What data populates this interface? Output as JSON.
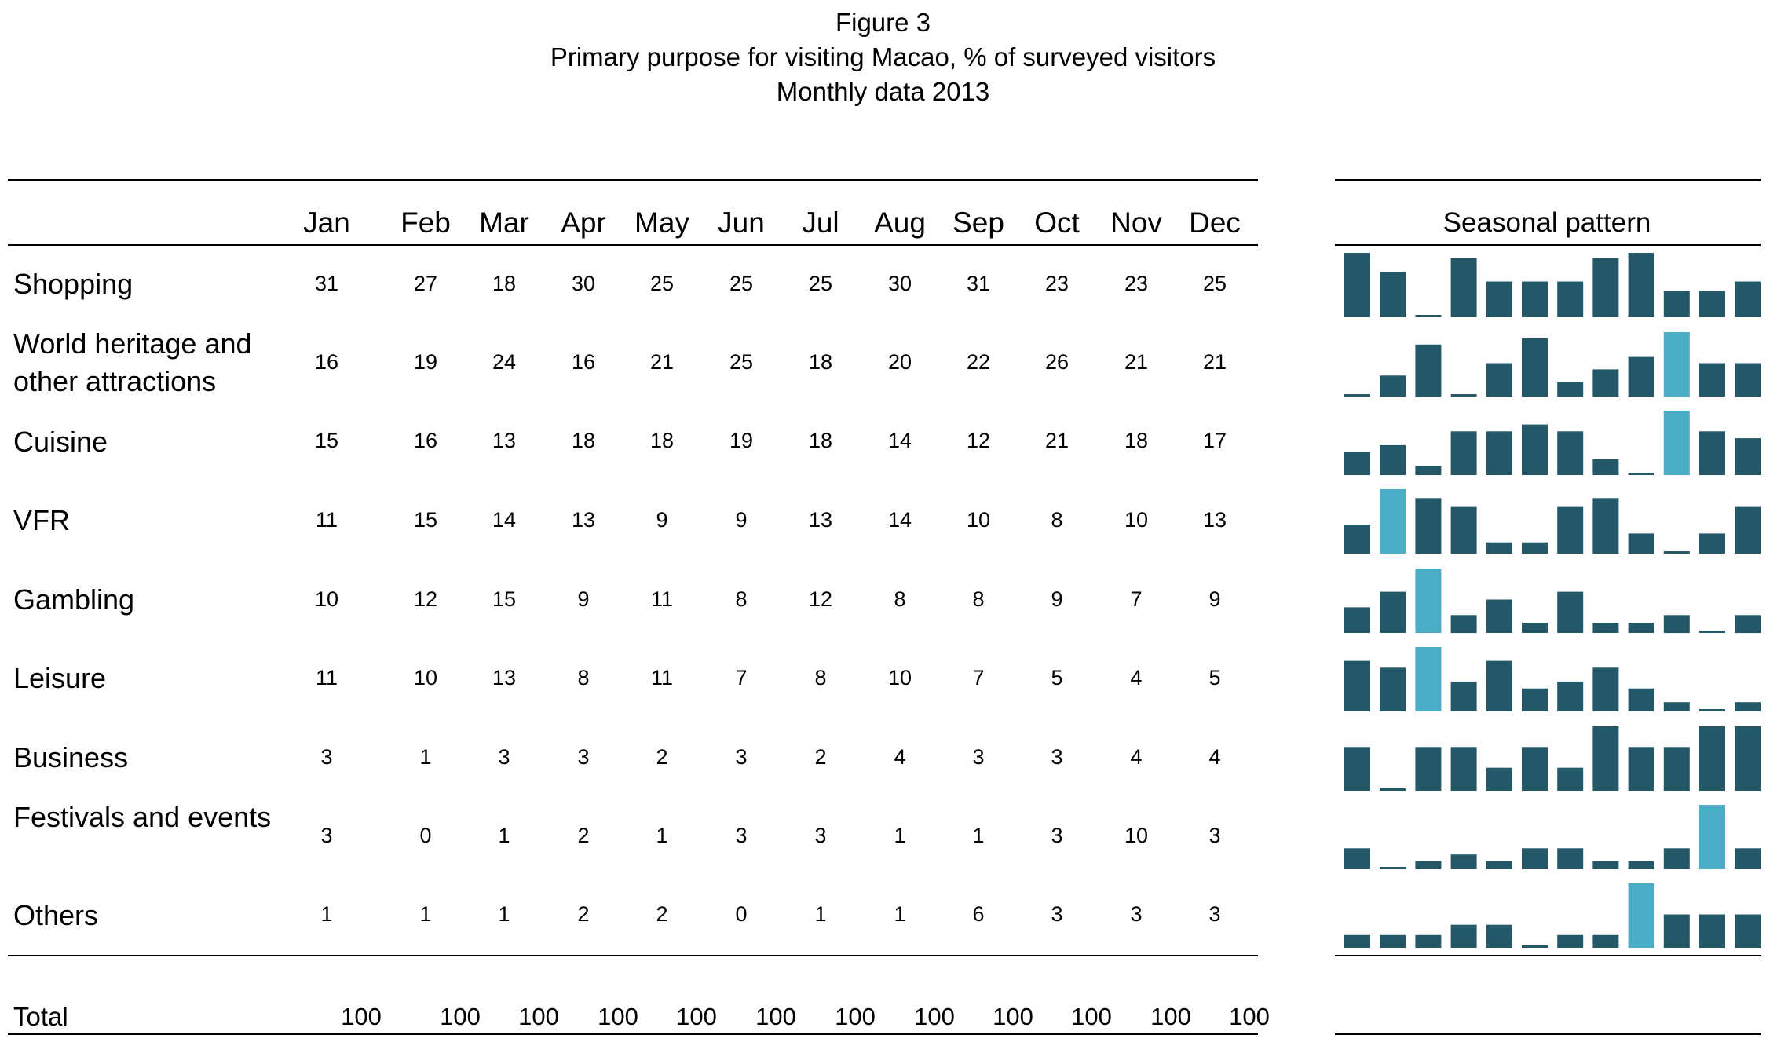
{
  "title": {
    "line1": "Figure 3",
    "line2": "Primary purpose for visiting Macao, % of surveyed visitors",
    "line3": "Monthly data 2013"
  },
  "seasonal_header": "Seasonal pattern",
  "colors": {
    "bar": "#245868",
    "highlight": "#4bacc6",
    "rule": "#000000"
  },
  "chart_data": {
    "type": "table",
    "columns": [
      "Jan",
      "Feb",
      "Mar",
      "Apr",
      "May",
      "Jun",
      "Jul",
      "Aug",
      "Sep",
      "Oct",
      "Nov",
      "Dec"
    ],
    "rows": [
      {
        "label": "Shopping",
        "values": [
          31,
          27,
          18,
          30,
          25,
          25,
          25,
          30,
          31,
          23,
          23,
          25
        ]
      },
      {
        "label": "World heritage and other attractions",
        "values": [
          16,
          19,
          24,
          16,
          21,
          25,
          18,
          20,
          22,
          26,
          21,
          21
        ]
      },
      {
        "label": "Cuisine",
        "values": [
          15,
          16,
          13,
          18,
          18,
          19,
          18,
          14,
          12,
          21,
          18,
          17
        ]
      },
      {
        "label": "VFR",
        "values": [
          11,
          15,
          14,
          13,
          9,
          9,
          13,
          14,
          10,
          8,
          10,
          13
        ]
      },
      {
        "label": "Gambling",
        "values": [
          10,
          12,
          15,
          9,
          11,
          8,
          12,
          8,
          8,
          9,
          7,
          9
        ]
      },
      {
        "label": "Leisure",
        "values": [
          11,
          10,
          13,
          8,
          11,
          7,
          8,
          10,
          7,
          5,
          4,
          5
        ]
      },
      {
        "label": "Business",
        "values": [
          3,
          1,
          3,
          3,
          2,
          3,
          2,
          4,
          3,
          3,
          4,
          4
        ]
      },
      {
        "label": "Festivals and events",
        "values": [
          3,
          0,
          1,
          2,
          1,
          3,
          3,
          1,
          1,
          3,
          10,
          3
        ]
      },
      {
        "label": "Others",
        "values": [
          1,
          1,
          1,
          2,
          2,
          0,
          1,
          1,
          6,
          3,
          3,
          3
        ]
      }
    ],
    "total": {
      "label": "Total",
      "values": [
        100,
        100,
        100,
        100,
        100,
        100,
        100,
        100,
        100,
        100,
        100,
        100
      ]
    },
    "sparklines": {
      "title": "Seasonal pattern",
      "type": "bar",
      "highlight": [
        {
          "row": "World heritage and other attractions",
          "month": "Oct"
        },
        {
          "row": "Cuisine",
          "month": "Oct"
        },
        {
          "row": "VFR",
          "month": "Feb"
        },
        {
          "row": "Gambling",
          "month": "Mar"
        },
        {
          "row": "Leisure",
          "month": "Mar"
        },
        {
          "row": "Festivals and events",
          "month": "Nov"
        },
        {
          "row": "Others",
          "month": "Sep"
        }
      ]
    }
  }
}
